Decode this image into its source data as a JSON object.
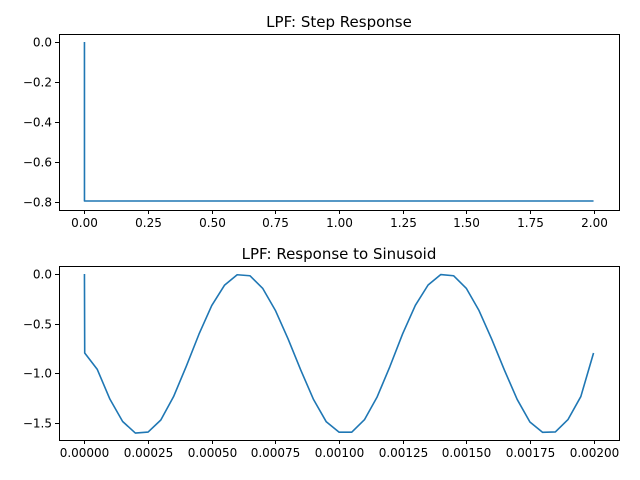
{
  "chart_data": [
    {
      "type": "line",
      "title": "LPF: Step Response",
      "xlabel": "",
      "ylabel": "",
      "xlim": [
        -0.1,
        2.1
      ],
      "ylim": [
        -0.84,
        0.04
      ],
      "xticks": [
        0.0,
        0.25,
        0.5,
        0.75,
        1.0,
        1.25,
        1.5,
        1.75,
        2.0
      ],
      "xtick_labels": [
        "0.00",
        "0.25",
        "0.50",
        "0.75",
        "1.00",
        "1.25",
        "1.50",
        "1.75",
        "2.00"
      ],
      "yticks": [
        0.0,
        -0.2,
        -0.4,
        -0.6,
        -0.8
      ],
      "ytick_labels": [
        "0.0",
        "−0.2",
        "−0.4",
        "−0.6",
        "−0.8"
      ],
      "grid": false,
      "line_color": "#1f77b4",
      "series": [
        {
          "x": [
            0.0,
            0.0001,
            0.25,
            0.5,
            0.75,
            1.0,
            1.25,
            1.5,
            1.75,
            2.0
          ],
          "y": [
            0.0,
            -0.795,
            -0.795,
            -0.795,
            -0.795,
            -0.795,
            -0.795,
            -0.795,
            -0.795,
            -0.795
          ]
        }
      ]
    },
    {
      "type": "line",
      "title": "LPF: Response to Sinusoid",
      "xlabel": "",
      "ylabel": "",
      "xlim": [
        -0.0001,
        0.0021
      ],
      "ylim": [
        -1.67,
        0.08
      ],
      "xticks": [
        0.0,
        0.00025,
        0.0005,
        0.00075,
        0.001,
        0.00125,
        0.0015,
        0.00175,
        0.002
      ],
      "xtick_labels": [
        "0.00000",
        "0.00025",
        "0.00050",
        "0.00075",
        "0.00100",
        "0.00125",
        "0.00150",
        "0.00175",
        "0.00200"
      ],
      "yticks": [
        0.0,
        -0.5,
        -1.0,
        -1.5
      ],
      "ytick_labels": [
        "0.0",
        "−0.5",
        "−1.0",
        "−1.5"
      ],
      "grid": false,
      "line_color": "#1f77b4",
      "series": [
        {
          "x": [
            0.0,
            1e-06,
            5e-05,
            0.0001,
            0.00015,
            0.0002,
            0.00025,
            0.0003,
            0.00035,
            0.0004,
            0.00045,
            0.0005,
            0.00055,
            0.0006,
            0.00065,
            0.0007,
            0.00075,
            0.0008,
            0.00085,
            0.0009,
            0.00095,
            0.001,
            0.00105,
            0.0011,
            0.00115,
            0.0012,
            0.00125,
            0.0013,
            0.00135,
            0.0014,
            0.00145,
            0.0015,
            0.00155,
            0.0016,
            0.00165,
            0.0017,
            0.00175,
            0.0018,
            0.00185,
            0.0019,
            0.00195,
            0.002
          ],
          "y": [
            0.0,
            -0.795,
            -0.958,
            -1.259,
            -1.484,
            -1.6,
            -1.59,
            -1.469,
            -1.234,
            -0.929,
            -0.605,
            -0.318,
            -0.114,
            -0.008,
            -0.018,
            -0.144,
            -0.366,
            -0.654,
            -0.968,
            -1.263,
            -1.487,
            -1.591,
            -1.591,
            -1.466,
            -1.236,
            -0.931,
            -0.602,
            -0.315,
            -0.111,
            -0.006,
            -0.018,
            -0.144,
            -0.368,
            -0.656,
            -0.968,
            -1.262,
            -1.489,
            -1.593,
            -1.589,
            -1.463,
            -1.233,
            -0.795
          ]
        }
      ]
    }
  ]
}
